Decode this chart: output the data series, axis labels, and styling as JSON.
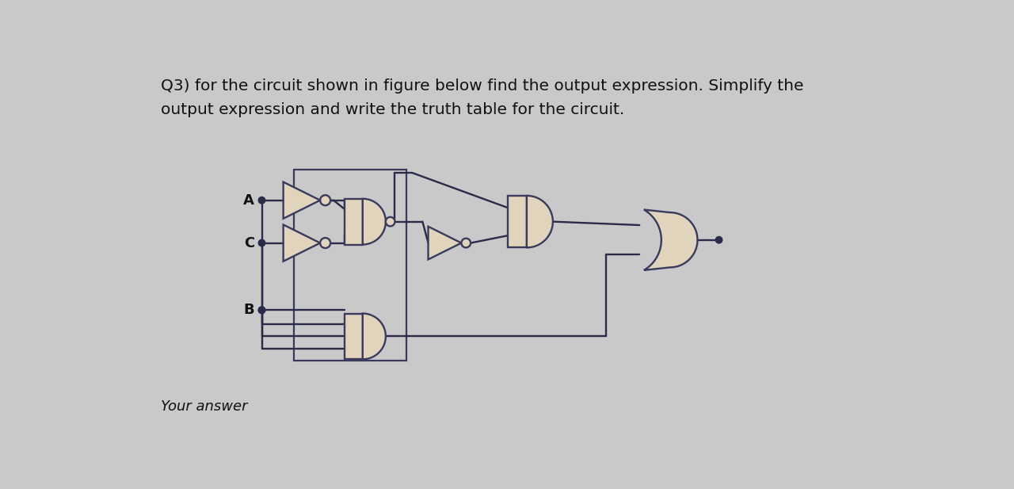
{
  "bg_color": "#c9c9c9",
  "card_color": "#d2d2d2",
  "gate_fill": "#e0d5bc",
  "gate_edge": "#3a3a5c",
  "wire_color": "#2a2a4a",
  "text_color": "#111111",
  "title_line1": "Q3) for the circuit shown in figure below find the output expression. Simplify the",
  "title_line2": "output expression and write the truth table for the circuit.",
  "footer": "Your answer",
  "title_fontsize": 14.5,
  "footer_fontsize": 13,
  "input_A_label": "A",
  "input_B_label": "B",
  "input_C_label": "C",
  "lw": 1.7,
  "dot_r": 0.055
}
